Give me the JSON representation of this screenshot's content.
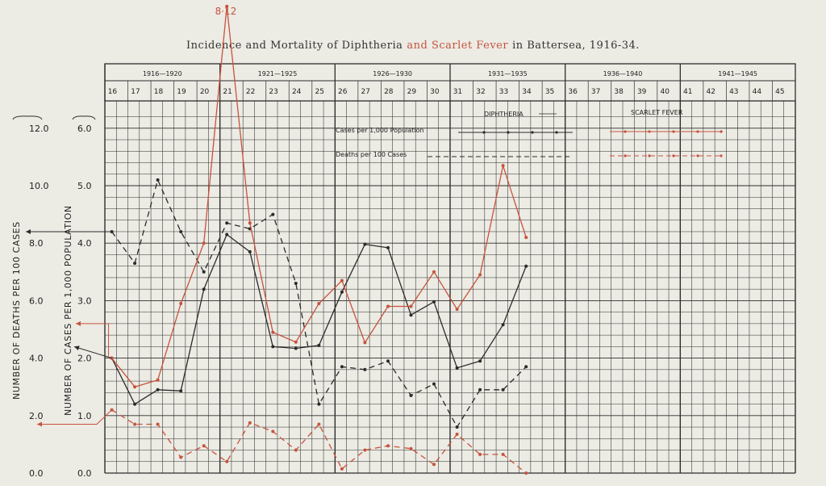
{
  "colors": {
    "diphtheria": "#2b2b2b",
    "scarlet": "#c6533d",
    "grid": "#2e2e2e",
    "paper": "#ecebe4"
  },
  "chart_data": {
    "type": "line",
    "title": {
      "part1": "Incidence and Mortality of Diphtheria",
      "part2": "and Scarlet Fever",
      "part3": "in Battersea, 1916-34."
    },
    "periods": [
      "1916—1920",
      "1921—1925",
      "1926—1930",
      "1931—1935",
      "1936—1940",
      "1941—1945"
    ],
    "years": [
      "16",
      "17",
      "18",
      "19",
      "20",
      "21",
      "22",
      "23",
      "24",
      "25",
      "26",
      "27",
      "28",
      "29",
      "30",
      "31",
      "32",
      "33",
      "34",
      "35",
      "36",
      "37",
      "38",
      "39",
      "40",
      "41",
      "42",
      "43",
      "44",
      "45"
    ],
    "y_cases_label": "NUMBER OF CASES PER 1,000 POPULATION",
    "y_deaths_label": "NUMBER OF DEATHS PER 100 CASES",
    "y_cases_ticks": [
      "0.0",
      "1.0",
      "2.0",
      "3.0",
      "4.0",
      "5.0",
      "6.0"
    ],
    "y_deaths_ticks": [
      "0.0",
      "2.0",
      "4.0",
      "6.0",
      "8.0",
      "10.0",
      "12.0"
    ],
    "ylim_cases": [
      0,
      6
    ],
    "ylim_deaths": [
      0,
      12
    ],
    "legend": {
      "diphtheria": "DIPHTHERIA",
      "scarlet": "SCARLET FEVER",
      "cases": "Cases per 1,000 Population",
      "deaths": "Deaths per 100 Cases"
    },
    "peak_label": "8·12",
    "series": [
      {
        "name": "Diphtheria cases per 1,000 population",
        "x": [
          16,
          17,
          18,
          19,
          20,
          21,
          22,
          23,
          24,
          25,
          26,
          27,
          28,
          29,
          30,
          31,
          32,
          33,
          34
        ],
        "values": [
          2.0,
          1.2,
          1.45,
          1.43,
          3.2,
          4.15,
          3.85,
          2.2,
          2.17,
          2.22,
          3.15,
          3.98,
          3.92,
          2.75,
          2.98,
          1.83,
          1.95,
          2.58,
          3.6
        ]
      },
      {
        "name": "Diphtheria deaths per 100 cases",
        "x": [
          16,
          17,
          18,
          19,
          20,
          21,
          22,
          23,
          24,
          25,
          26,
          27,
          28,
          29,
          30,
          31,
          32,
          33,
          34
        ],
        "values": [
          8.4,
          7.3,
          10.2,
          8.4,
          7.0,
          8.7,
          8.5,
          9.0,
          6.6,
          2.4,
          3.7,
          3.6,
          3.9,
          2.7,
          3.1,
          1.6,
          2.9,
          2.9,
          3.7
        ]
      },
      {
        "name": "Scarlet fever cases per 1,000 population",
        "x": [
          16,
          17,
          18,
          19,
          20,
          21,
          22,
          23,
          24,
          25,
          26,
          27,
          28,
          29,
          30,
          31,
          32,
          33,
          34
        ],
        "values": [
          2.0,
          1.5,
          1.62,
          2.95,
          4.0,
          8.12,
          4.35,
          2.45,
          2.28,
          2.95,
          3.35,
          2.27,
          2.9,
          2.9,
          3.5,
          2.85,
          3.45,
          5.35,
          4.1
        ]
      },
      {
        "name": "Scarlet fever deaths per 100 cases",
        "x": [
          16,
          17,
          18,
          19,
          20,
          21,
          22,
          23,
          24,
          25,
          26,
          27,
          28,
          29,
          30,
          31,
          32,
          33,
          34
        ],
        "values": [
          2.2,
          1.7,
          1.7,
          0.55,
          0.95,
          0.4,
          1.75,
          1.45,
          0.8,
          1.7,
          0.15,
          0.8,
          0.95,
          0.85,
          0.3,
          1.35,
          0.65,
          0.65,
          0.0
        ]
      }
    ]
  }
}
